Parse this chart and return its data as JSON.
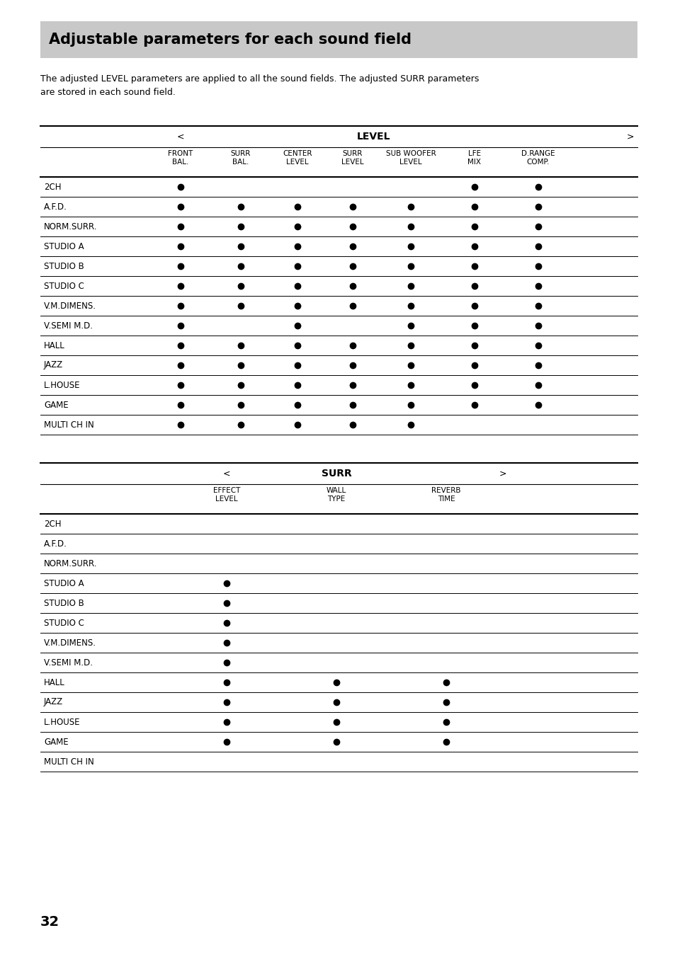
{
  "title": "Adjustable parameters for each sound field",
  "subtitle": "The adjusted LEVEL parameters are applied to all the sound fields. The adjusted SURR parameters\nare stored in each sound field.",
  "page_number": "32",
  "bg_color": "#ffffff",
  "header_bg_color": "#c8c8c8",
  "table1_headers2": [
    "FRONT\nBAL.",
    "SURR\nBAL.",
    "CENTER\nLEVEL",
    "SURR\nLEVEL",
    "SUB WOOFER\nLEVEL",
    "LFE\nMIX",
    "D.RANGE\nCOMP."
  ],
  "table1_rows": [
    {
      "label": "2CH",
      "dots": [
        1,
        0,
        0,
        0,
        0,
        1,
        1
      ]
    },
    {
      "label": "A.F.D.",
      "dots": [
        1,
        1,
        1,
        1,
        1,
        1,
        1
      ]
    },
    {
      "label": "NORM.SURR.",
      "dots": [
        1,
        1,
        1,
        1,
        1,
        1,
        1
      ]
    },
    {
      "label": "STUDIO A",
      "dots": [
        1,
        1,
        1,
        1,
        1,
        1,
        1
      ]
    },
    {
      "label": "STUDIO B",
      "dots": [
        1,
        1,
        1,
        1,
        1,
        1,
        1
      ]
    },
    {
      "label": "STUDIO C",
      "dots": [
        1,
        1,
        1,
        1,
        1,
        1,
        1
      ]
    },
    {
      "label": "V.M.DIMENS.",
      "dots": [
        1,
        1,
        1,
        1,
        1,
        1,
        1
      ]
    },
    {
      "label": "V.SEMI M.D.",
      "dots": [
        1,
        0,
        1,
        0,
        1,
        1,
        1
      ]
    },
    {
      "label": "HALL",
      "dots": [
        1,
        1,
        1,
        1,
        1,
        1,
        1
      ]
    },
    {
      "label": "JAZZ",
      "dots": [
        1,
        1,
        1,
        1,
        1,
        1,
        1
      ]
    },
    {
      "label": "L.HOUSE",
      "dots": [
        1,
        1,
        1,
        1,
        1,
        1,
        1
      ]
    },
    {
      "label": "GAME",
      "dots": [
        1,
        1,
        1,
        1,
        1,
        1,
        1
      ]
    },
    {
      "label": "MULTI CH IN",
      "dots": [
        1,
        1,
        1,
        1,
        1,
        0,
        0
      ]
    }
  ],
  "table2_headers2": [
    "EFFECT\nLEVEL",
    "WALL\nTYPE",
    "REVERB\nTIME"
  ],
  "table2_rows": [
    {
      "label": "2CH",
      "dots": [
        0,
        0,
        0
      ]
    },
    {
      "label": "A.F.D.",
      "dots": [
        0,
        0,
        0
      ]
    },
    {
      "label": "NORM.SURR.",
      "dots": [
        0,
        0,
        0
      ]
    },
    {
      "label": "STUDIO A",
      "dots": [
        1,
        0,
        0
      ]
    },
    {
      "label": "STUDIO B",
      "dots": [
        1,
        0,
        0
      ]
    },
    {
      "label": "STUDIO C",
      "dots": [
        1,
        0,
        0
      ]
    },
    {
      "label": "V.M.DIMENS.",
      "dots": [
        1,
        0,
        0
      ]
    },
    {
      "label": "V.SEMI M.D.",
      "dots": [
        1,
        0,
        0
      ]
    },
    {
      "label": "HALL",
      "dots": [
        1,
        1,
        1
      ]
    },
    {
      "label": "JAZZ",
      "dots": [
        1,
        1,
        1
      ]
    },
    {
      "label": "L.HOUSE",
      "dots": [
        1,
        1,
        1
      ]
    },
    {
      "label": "GAME",
      "dots": [
        1,
        1,
        1
      ]
    },
    {
      "label": "MULTI CH IN",
      "dots": [
        0,
        0,
        0
      ]
    }
  ]
}
